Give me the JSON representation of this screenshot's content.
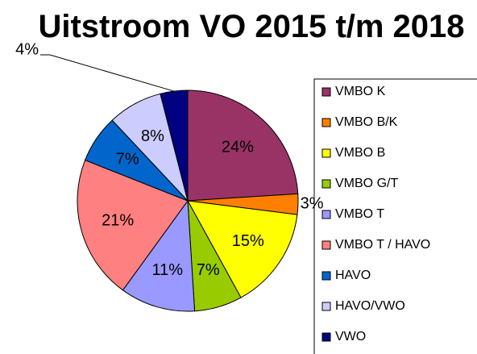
{
  "chart_data": {
    "type": "pie",
    "title": "Uitstroom VO 2015 t/m 2018",
    "categories": [
      "VMBO K",
      "VMBO B/K",
      "VMBO B",
      "VMBO G/T",
      "VMBO T",
      "VMBO T / HAVO",
      "HAVO",
      "HAVO/VWO",
      "VWO"
    ],
    "values": [
      24,
      3,
      15,
      7,
      11,
      21,
      7,
      8,
      4
    ],
    "value_labels": [
      "24%",
      "3%",
      "15%",
      "7%",
      "11%",
      "21%",
      "7%",
      "8%",
      "4%"
    ],
    "colors": [
      "#993366",
      "#ff8000",
      "#ffff00",
      "#99cc00",
      "#9999ff",
      "#ff8080",
      "#0066cc",
      "#ccccff",
      "#000080"
    ],
    "legend": "right"
  }
}
